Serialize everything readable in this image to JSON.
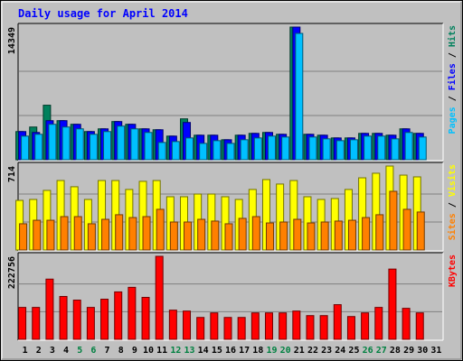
{
  "chart_data": [
    {
      "type": "bar",
      "title": "Daily usage for April 2014",
      "legend_separator": " / ",
      "ylim": [
        0,
        14349
      ],
      "yticks": [
        14349
      ],
      "series": [
        {
          "name": "Hits",
          "color": "#00805c",
          "values": [
            3047,
            3539,
            5898,
            4227,
            3834,
            3047,
            3342,
            4129,
            3834,
            3342,
            3244,
            2556,
            4424,
            2654,
            2654,
            2163,
            2654,
            2851,
            2949,
            2752,
            14349,
            2752,
            2654,
            2359,
            2359,
            2851,
            2851,
            2654,
            3342,
            2851,
            null
          ]
        },
        {
          "name": "Files",
          "color": "#0000ff",
          "values": [
            3047,
            2949,
            4227,
            4227,
            3834,
            3047,
            3342,
            4129,
            3834,
            3342,
            3244,
            2556,
            4030,
            2654,
            2654,
            2163,
            2654,
            2851,
            2949,
            2752,
            14349,
            2752,
            2654,
            2359,
            2359,
            2851,
            2851,
            2654,
            3342,
            2851,
            null
          ]
        },
        {
          "name": "Pages",
          "color": "#00c0ff",
          "values": [
            2556,
            2752,
            3834,
            3539,
            3342,
            2752,
            3047,
            3637,
            3342,
            2949,
            1868,
            1966,
            2359,
            1769,
            2064,
            1769,
            2163,
            2359,
            2556,
            2458,
            13664,
            2458,
            2261,
            2064,
            2163,
            2556,
            2556,
            2261,
            2949,
            2458,
            null
          ]
        }
      ]
    },
    {
      "type": "bar",
      "ylim": [
        0,
        714
      ],
      "yticks": [
        714
      ],
      "series": [
        {
          "name": "Visits",
          "color": "#ffff00",
          "values": [
            422,
            430,
            507,
            591,
            538,
            430,
            591,
            591,
            515,
            584,
            591,
            453,
            453,
            476,
            476,
            453,
            430,
            515,
            599,
            561,
            591,
            453,
            430,
            438,
            515,
            614,
            653,
            714,
            637,
            622,
            null
          ]
        },
        {
          "name": "Sites",
          "color": "#ff8000",
          "values": [
            223,
            253,
            253,
            284,
            284,
            223,
            261,
            300,
            276,
            284,
            346,
            238,
            238,
            261,
            246,
            223,
            269,
            284,
            230,
            238,
            261,
            230,
            238,
            246,
            253,
            276,
            300,
            499,
            346,
            323,
            null
          ]
        }
      ]
    },
    {
      "type": "bar",
      "ylim": [
        0,
        222756
      ],
      "yticks": [
        222756
      ],
      "categories": [
        "1",
        "2",
        "3",
        "4",
        "5",
        "6",
        "7",
        "8",
        "9",
        "10",
        "11",
        "12",
        "13",
        "14",
        "15",
        "16",
        "17",
        "18",
        "19",
        "20",
        "21",
        "22",
        "23",
        "24",
        "25",
        "26",
        "27",
        "28",
        "29",
        "30",
        "31"
      ],
      "highlighted": [
        4,
        5,
        11,
        12,
        18,
        19,
        25,
        26
      ],
      "highlight_color": "#008040",
      "series": [
        {
          "name": "KBytes",
          "color": "#ff0000",
          "values": [
            85680,
            85680,
            161568,
            115056,
            105264,
            85680,
            107712,
            127296,
            139536,
            112608,
            222756,
            78336,
            75888,
            58752,
            70992,
            58752,
            58752,
            70992,
            70992,
            70992,
            75888,
            63648,
            63648,
            93024,
            61200,
            70992,
            85680,
            188496,
            83232,
            70992,
            null
          ]
        }
      ]
    }
  ]
}
